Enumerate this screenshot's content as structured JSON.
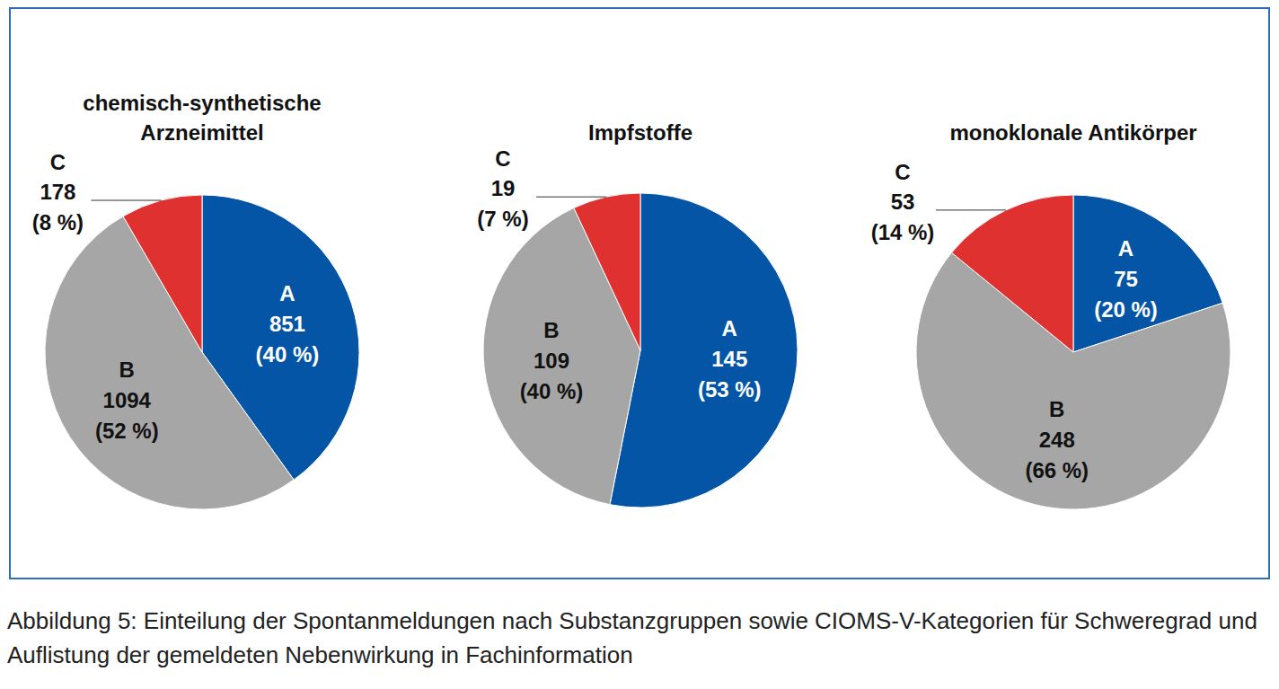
{
  "caption": "Abbildung 5: Einteilung der Spontanmeldungen nach Substanzgruppen sowie CIOMS-V-Kategorien für Schweregrad und Auflistung der gemeldeten Nebenwirkung in Fachinformation",
  "chart_data": [
    {
      "type": "pie",
      "title": "chemisch-synthetische Arzneimittel",
      "categories": [
        "A",
        "B",
        "C"
      ],
      "values": [
        851,
        1094,
        178
      ],
      "percent_labels": [
        "(40 %)",
        "(52 %)",
        "(8 %)"
      ],
      "colors": [
        "#0455a6",
        "#a6a6a6",
        "#e03131"
      ],
      "data_labels": true
    },
    {
      "type": "pie",
      "title": "Impfstoffe",
      "categories": [
        "A",
        "B",
        "C"
      ],
      "values": [
        145,
        109,
        19
      ],
      "percent_labels": [
        "(53 %)",
        "(40 %)",
        "(7 %)"
      ],
      "colors": [
        "#0455a6",
        "#a6a6a6",
        "#e03131"
      ],
      "data_labels": true
    },
    {
      "type": "pie",
      "title": "monoklonale Antikörper",
      "categories": [
        "A",
        "B",
        "C"
      ],
      "values": [
        75,
        248,
        53
      ],
      "percent_labels": [
        "(20 %)",
        "(66 %)",
        "(14 %)"
      ],
      "colors": [
        "#0455a6",
        "#a6a6a6",
        "#e03131"
      ],
      "data_labels": true
    }
  ]
}
